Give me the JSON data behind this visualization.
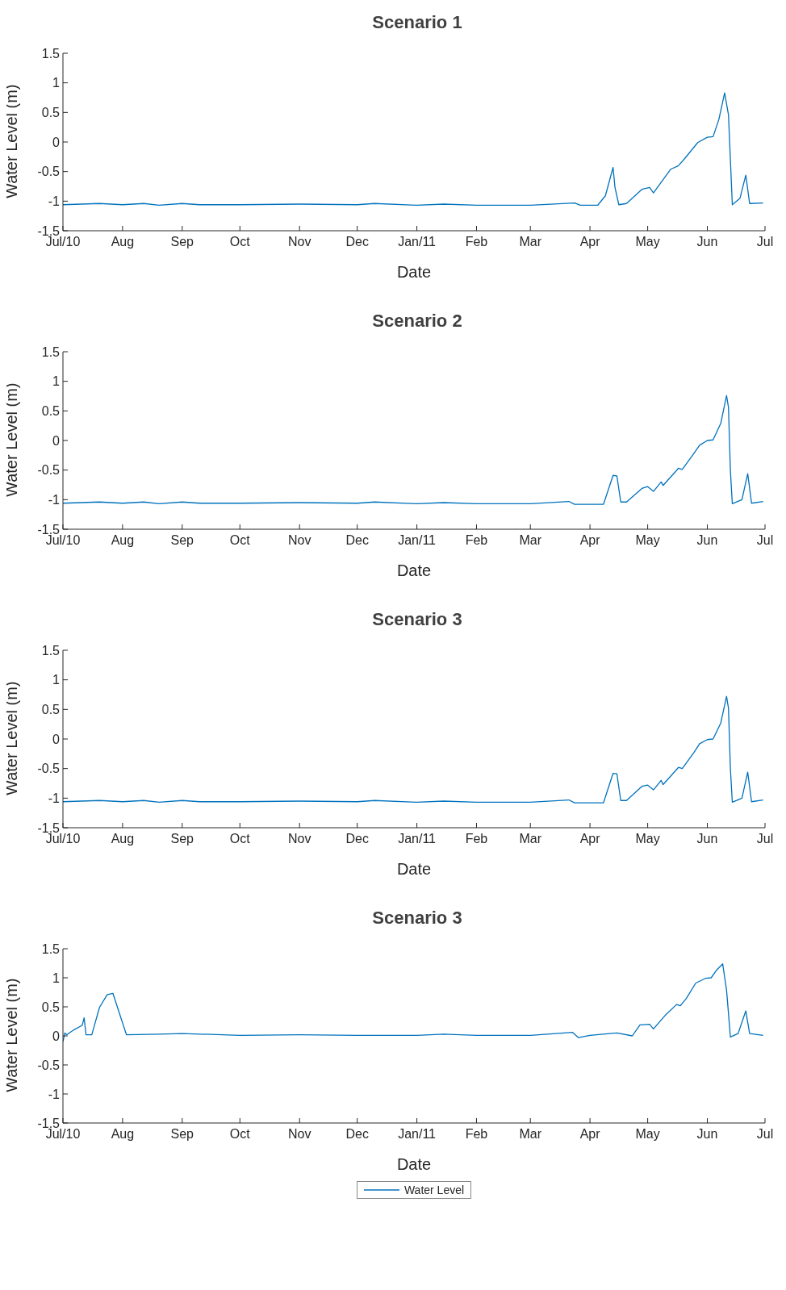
{
  "chart_data": [
    {
      "type": "line",
      "title": "Scenario 1",
      "xlabel": "Date",
      "ylabel": "Water Level (m)",
      "xlim": [
        "2010-07-01",
        "2011-07-01"
      ],
      "xticks": [
        {
          "value": "2010-07-01",
          "label": "Jul/10"
        },
        {
          "value": "2010-08-01",
          "label": "Aug"
        },
        {
          "value": "2010-09-01",
          "label": "Sep"
        },
        {
          "value": "2010-10-01",
          "label": "Oct"
        },
        {
          "value": "2010-11-01",
          "label": "Nov"
        },
        {
          "value": "2010-12-01",
          "label": "Dec"
        },
        {
          "value": "2011-01-01",
          "label": "Jan/11"
        },
        {
          "value": "2011-02-01",
          "label": "Feb"
        },
        {
          "value": "2011-03-01",
          "label": "Mar"
        },
        {
          "value": "2011-04-01",
          "label": "Apr"
        },
        {
          "value": "2011-05-01",
          "label": "May"
        },
        {
          "value": "2011-06-01",
          "label": "Jun"
        },
        {
          "value": "2011-07-01",
          "label": "Jul"
        }
      ],
      "ylim": [
        -1.5,
        1.5
      ],
      "yticks": [
        -1.5,
        -1,
        -0.5,
        0,
        0.5,
        1,
        1.5
      ],
      "grid": false,
      "legend": false,
      "series": [
        {
          "color": "#0072bd",
          "x": [
            "2010-07-01",
            "2010-07-20",
            "2010-08-01",
            "2010-08-12",
            "2010-08-20",
            "2010-09-01",
            "2010-09-10",
            "2010-10-01",
            "2010-11-01",
            "2010-12-01",
            "2010-12-10",
            "2011-01-01",
            "2011-01-15",
            "2011-02-01",
            "2011-03-01",
            "2011-03-24",
            "2011-03-27",
            "2011-04-05",
            "2011-04-09",
            "2011-04-13",
            "2011-04-14",
            "2011-04-16",
            "2011-04-20",
            "2011-04-28",
            "2011-05-02",
            "2011-05-04",
            "2011-05-13",
            "2011-05-17",
            "2011-05-20",
            "2011-05-27",
            "2011-06-01",
            "2011-06-04",
            "2011-06-07",
            "2011-06-10",
            "2011-06-12",
            "2011-06-14",
            "2011-06-18",
            "2011-06-21",
            "2011-06-23",
            "2011-06-30"
          ],
          "values": [
            -1.06,
            -1.04,
            -1.06,
            -1.04,
            -1.07,
            -1.04,
            -1.06,
            -1.06,
            -1.05,
            -1.06,
            -1.04,
            -1.07,
            -1.05,
            -1.07,
            -1.07,
            -1.03,
            -1.07,
            -1.07,
            -0.91,
            -0.43,
            -0.77,
            -1.06,
            -1.04,
            -0.8,
            -0.77,
            -0.86,
            -0.46,
            -0.4,
            -0.29,
            -0.01,
            0.08,
            0.09,
            0.38,
            0.83,
            0.46,
            -1.06,
            -0.95,
            -0.56,
            -1.04,
            -1.03
          ]
        }
      ]
    },
    {
      "type": "line",
      "title": "Scenario 2",
      "xlabel": "Date",
      "ylabel": "Water Level (m)",
      "xlim": [
        "2010-07-01",
        "2011-07-01"
      ],
      "xticks": [
        {
          "value": "2010-07-01",
          "label": "Jul/10"
        },
        {
          "value": "2010-08-01",
          "label": "Aug"
        },
        {
          "value": "2010-09-01",
          "label": "Sep"
        },
        {
          "value": "2010-10-01",
          "label": "Oct"
        },
        {
          "value": "2010-11-01",
          "label": "Nov"
        },
        {
          "value": "2010-12-01",
          "label": "Dec"
        },
        {
          "value": "2011-01-01",
          "label": "Jan/11"
        },
        {
          "value": "2011-02-01",
          "label": "Feb"
        },
        {
          "value": "2011-03-01",
          "label": "Mar"
        },
        {
          "value": "2011-04-01",
          "label": "Apr"
        },
        {
          "value": "2011-05-01",
          "label": "May"
        },
        {
          "value": "2011-06-01",
          "label": "Jun"
        },
        {
          "value": "2011-07-01",
          "label": "Jul"
        }
      ],
      "ylim": [
        -1.5,
        1.5
      ],
      "yticks": [
        -1.5,
        -1,
        -0.5,
        0,
        0.5,
        1,
        1.5
      ],
      "grid": false,
      "legend": false,
      "series": [
        {
          "color": "#0072bd",
          "x": [
            "2010-07-01",
            "2010-07-20",
            "2010-08-01",
            "2010-08-12",
            "2010-08-20",
            "2010-09-01",
            "2010-09-10",
            "2010-10-01",
            "2010-11-01",
            "2010-12-01",
            "2010-12-10",
            "2011-01-01",
            "2011-01-15",
            "2011-02-01",
            "2011-03-01",
            "2011-03-21",
            "2011-03-24",
            "2011-04-08",
            "2011-04-13",
            "2011-04-15",
            "2011-04-17",
            "2011-04-20",
            "2011-04-28",
            "2011-05-01",
            "2011-05-04",
            "2011-05-08",
            "2011-05-09",
            "2011-05-17",
            "2011-05-19",
            "2011-05-25",
            "2011-05-28",
            "2011-06-01",
            "2011-06-04",
            "2011-06-08",
            "2011-06-11",
            "2011-06-12",
            "2011-06-13",
            "2011-06-14",
            "2011-06-19",
            "2011-06-22",
            "2011-06-24",
            "2011-06-30"
          ],
          "values": [
            -1.06,
            -1.04,
            -1.06,
            -1.04,
            -1.07,
            -1.04,
            -1.06,
            -1.06,
            -1.05,
            -1.06,
            -1.04,
            -1.07,
            -1.05,
            -1.07,
            -1.07,
            -1.03,
            -1.08,
            -1.08,
            -0.59,
            -0.6,
            -1.04,
            -1.04,
            -0.81,
            -0.78,
            -0.86,
            -0.7,
            -0.76,
            -0.47,
            -0.49,
            -0.22,
            -0.08,
            0,
            0.01,
            0.29,
            0.76,
            0.56,
            -0.51,
            -1.07,
            -1,
            -0.56,
            -1.06,
            -1.03
          ]
        }
      ]
    },
    {
      "type": "line",
      "title": "Scenario 3",
      "xlabel": "Date",
      "ylabel": "Water Level (m)",
      "xlim": [
        "2010-07-01",
        "2011-07-01"
      ],
      "xticks": [
        {
          "value": "2010-07-01",
          "label": "Jul/10"
        },
        {
          "value": "2010-08-01",
          "label": "Aug"
        },
        {
          "value": "2010-09-01",
          "label": "Sep"
        },
        {
          "value": "2010-10-01",
          "label": "Oct"
        },
        {
          "value": "2010-11-01",
          "label": "Nov"
        },
        {
          "value": "2010-12-01",
          "label": "Dec"
        },
        {
          "value": "2011-01-01",
          "label": "Jan/11"
        },
        {
          "value": "2011-02-01",
          "label": "Feb"
        },
        {
          "value": "2011-03-01",
          "label": "Mar"
        },
        {
          "value": "2011-04-01",
          "label": "Apr"
        },
        {
          "value": "2011-05-01",
          "label": "May"
        },
        {
          "value": "2011-06-01",
          "label": "Jun"
        },
        {
          "value": "2011-07-01",
          "label": "Jul"
        }
      ],
      "ylim": [
        -1.5,
        1.5
      ],
      "yticks": [
        -1.5,
        -1,
        -0.5,
        0,
        0.5,
        1,
        1.5
      ],
      "grid": false,
      "legend": false,
      "series": [
        {
          "color": "#0072bd",
          "x": [
            "2010-07-01",
            "2010-07-20",
            "2010-08-01",
            "2010-08-12",
            "2010-08-20",
            "2010-09-01",
            "2010-09-10",
            "2010-10-01",
            "2010-11-01",
            "2010-12-01",
            "2010-12-10",
            "2011-01-01",
            "2011-01-15",
            "2011-02-01",
            "2011-03-01",
            "2011-03-21",
            "2011-03-24",
            "2011-04-08",
            "2011-04-13",
            "2011-04-15",
            "2011-04-17",
            "2011-04-20",
            "2011-04-28",
            "2011-05-01",
            "2011-05-04",
            "2011-05-08",
            "2011-05-09",
            "2011-05-17",
            "2011-05-19",
            "2011-05-25",
            "2011-05-28",
            "2011-06-01",
            "2011-06-04",
            "2011-06-08",
            "2011-06-11",
            "2011-06-12",
            "2011-06-13",
            "2011-06-14",
            "2011-06-19",
            "2011-06-22",
            "2011-06-24",
            "2011-06-30"
          ],
          "values": [
            -1.06,
            -1.04,
            -1.06,
            -1.04,
            -1.07,
            -1.04,
            -1.06,
            -1.06,
            -1.05,
            -1.06,
            -1.04,
            -1.07,
            -1.05,
            -1.07,
            -1.07,
            -1.03,
            -1.08,
            -1.08,
            -0.58,
            -0.59,
            -1.04,
            -1.04,
            -0.8,
            -0.78,
            -0.86,
            -0.7,
            -0.77,
            -0.48,
            -0.5,
            -0.23,
            -0.08,
            -0.01,
            0,
            0.27,
            0.72,
            0.52,
            -0.5,
            -1.07,
            -1,
            -0.56,
            -1.06,
            -1.03
          ]
        }
      ]
    },
    {
      "type": "line",
      "title": "Scenario 3",
      "xlabel": "Date",
      "ylabel": "Water Level (m)",
      "xlim": [
        "2010-07-01",
        "2011-07-01"
      ],
      "xticks": [
        {
          "value": "2010-07-01",
          "label": "Jul/10"
        },
        {
          "value": "2010-08-01",
          "label": "Aug"
        },
        {
          "value": "2010-09-01",
          "label": "Sep"
        },
        {
          "value": "2010-10-01",
          "label": "Oct"
        },
        {
          "value": "2010-11-01",
          "label": "Nov"
        },
        {
          "value": "2010-12-01",
          "label": "Dec"
        },
        {
          "value": "2011-01-01",
          "label": "Jan/11"
        },
        {
          "value": "2011-02-01",
          "label": "Feb"
        },
        {
          "value": "2011-03-01",
          "label": "Mar"
        },
        {
          "value": "2011-04-01",
          "label": "Apr"
        },
        {
          "value": "2011-05-01",
          "label": "May"
        },
        {
          "value": "2011-06-01",
          "label": "Jun"
        },
        {
          "value": "2011-07-01",
          "label": "Jul"
        }
      ],
      "ylim": [
        -1.5,
        1.5
      ],
      "yticks": [
        -1.5,
        -1,
        -0.5,
        0,
        0.5,
        1,
        1.5
      ],
      "grid": false,
      "legend": "bottom",
      "series": [
        {
          "name": "Water Level",
          "color": "#0072bd",
          "x": [
            "2010-07-01",
            "2010-07-02",
            "2010-07-03",
            "2010-07-07",
            "2010-07-11",
            "2010-07-12",
            "2010-07-13",
            "2010-07-16",
            "2010-07-20",
            "2010-07-24",
            "2010-07-27",
            "2010-08-03",
            "2010-08-20",
            "2010-09-01",
            "2010-10-01",
            "2010-11-01",
            "2010-12-01",
            "2011-01-01",
            "2011-01-15",
            "2011-02-01",
            "2011-03-01",
            "2011-03-23",
            "2011-03-26",
            "2011-04-01",
            "2011-04-15",
            "2011-04-23",
            "2011-04-27",
            "2011-05-02",
            "2011-05-04",
            "2011-05-10",
            "2011-05-16",
            "2011-05-18",
            "2011-05-21",
            "2011-05-26",
            "2011-05-31",
            "2011-06-03",
            "2011-06-06",
            "2011-06-09",
            "2011-06-10",
            "2011-06-11",
            "2011-06-13",
            "2011-06-17",
            "2011-06-21",
            "2011-06-23",
            "2011-06-30"
          ],
          "values": [
            -0.1,
            0.05,
            0.02,
            0.11,
            0.18,
            0.31,
            0.02,
            0.02,
            0.49,
            0.71,
            0.73,
            0.02,
            0.03,
            0.04,
            0.01,
            0.02,
            0.01,
            0.01,
            0.03,
            0.01,
            0.01,
            0.06,
            -0.03,
            0.01,
            0.05,
            0,
            0.19,
            0.2,
            0.12,
            0.35,
            0.54,
            0.52,
            0.64,
            0.91,
            0.99,
            1,
            1.14,
            1.24,
            1.01,
            0.79,
            -0.02,
            0.04,
            0.43,
            0.04,
            0.01
          ]
        }
      ]
    }
  ]
}
